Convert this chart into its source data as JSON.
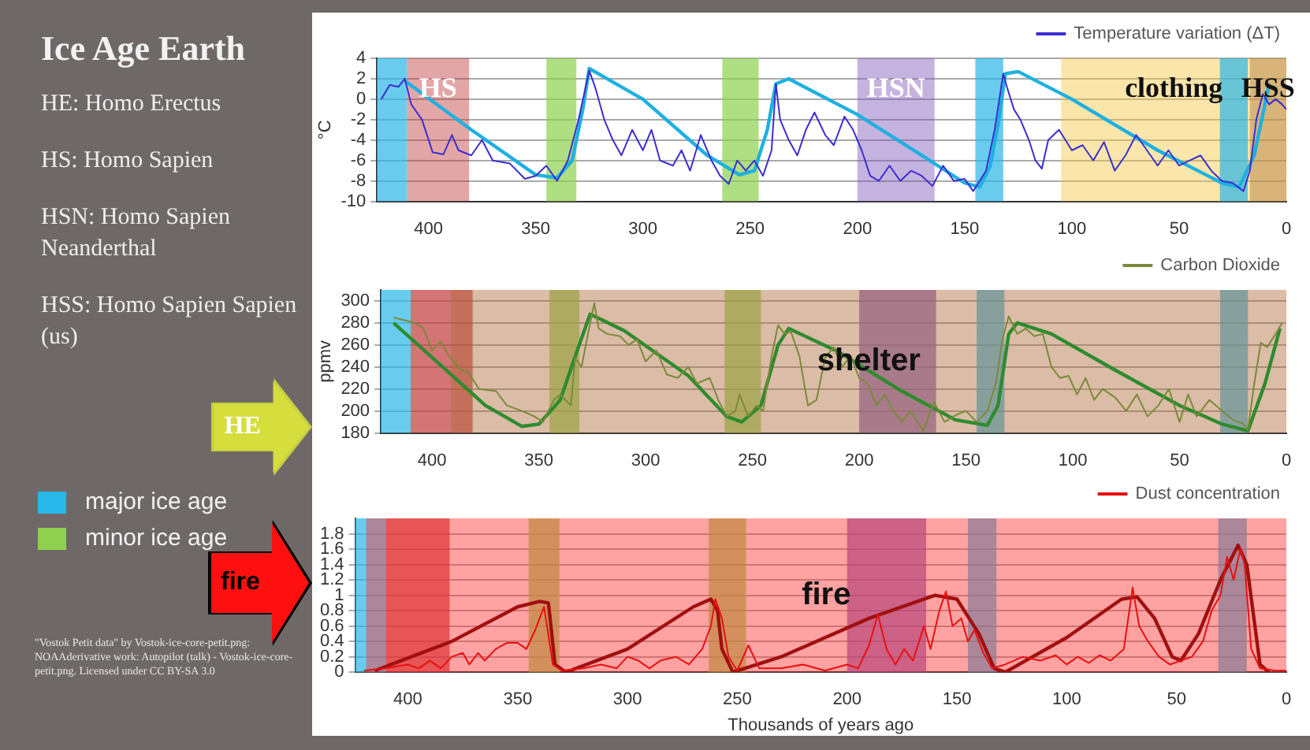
{
  "chart_data": [
    {
      "type": "line",
      "title": "Ice Age Earth",
      "ylabel": "°C",
      "xlim": [
        424,
        0
      ],
      "xticks": [
        400,
        350,
        300,
        250,
        200,
        150,
        100,
        50,
        0
      ],
      "ylim": [
        -10,
        4
      ],
      "yticks": [
        -10,
        -8,
        -6,
        -4,
        -2,
        0,
        2,
        4
      ],
      "grid": "y",
      "legend": "top right",
      "marker": "none",
      "annotations": [
        "HE: Homo Erectus",
        "HS: Homo Sapien",
        "HSN: Homo Sapien Neanderthal",
        "HSS: Homo Sapien Sapien (us)",
        "major ice age",
        "minor ice age",
        "\"Vostok Petit data\" by Vostok-ice-core-petit.png: NOAAderivative work: Autopilot (talk) - Vostok-ice-core-petit.png. Licensed under CC BY-SA 3.0"
      ],
      "bands": [
        {
          "axis": "x",
          "from": 424,
          "to": 410,
          "color": "#29b6e8"
        },
        {
          "axis": "x",
          "from": 410,
          "to": 381,
          "label": "HS",
          "color": "#c0393b"
        },
        {
          "axis": "x",
          "from": 345,
          "to": 331,
          "color": "#8fd14f"
        },
        {
          "axis": "x",
          "from": 263,
          "to": 246,
          "color": "#8fd14f"
        },
        {
          "axis": "x",
          "from": 200,
          "to": 164,
          "label": "HSN",
          "color": "#7e57b8"
        },
        {
          "axis": "x",
          "from": 145,
          "to": 132,
          "color": "#29b6e8"
        },
        {
          "axis": "x",
          "from": 105,
          "to": 0,
          "label": "clothing",
          "color": "#f5c842"
        },
        {
          "axis": "x",
          "from": 31,
          "to": 18,
          "color": "#29b6e8"
        },
        {
          "axis": "x",
          "from": 17,
          "to": 0,
          "label": "HSS",
          "color": "#b07840"
        }
      ],
      "series": [
        {
          "name": "Temperature variation (ΔT)",
          "color": "#3b2fd0",
          "x": [
            422,
            418,
            414,
            411,
            408,
            403,
            398,
            393,
            389,
            386,
            380,
            375,
            370,
            362,
            355,
            350,
            345,
            340,
            335,
            330,
            325,
            322,
            318,
            314,
            310,
            305,
            300,
            296,
            292,
            286,
            282,
            278,
            273,
            268,
            264,
            260,
            256,
            252,
            248,
            244,
            240,
            238,
            236,
            232,
            228,
            224,
            220,
            215,
            211,
            206,
            202,
            198,
            194,
            190,
            185,
            180,
            175,
            170,
            165,
            160,
            155,
            150,
            146,
            140,
            136,
            132,
            130,
            127,
            124,
            120,
            117,
            114,
            111,
            106,
            100,
            95,
            90,
            85,
            80,
            75,
            70,
            65,
            60,
            55,
            50,
            45,
            40,
            35,
            30,
            25,
            20,
            17,
            14,
            11,
            8,
            5,
            2,
            0
          ],
          "values": [
            0,
            1.4,
            1.2,
            2,
            -0.5,
            -2,
            -5.2,
            -5.4,
            -3.5,
            -5,
            -5.5,
            -4,
            -6,
            -6.3,
            -7.8,
            -7.5,
            -6.5,
            -8,
            -6,
            -2,
            2.8,
            1,
            -2,
            -4,
            -5.5,
            -3,
            -5,
            -3,
            -6,
            -6.5,
            -5,
            -7,
            -3.5,
            -6,
            -7.5,
            -8.3,
            -6,
            -7,
            -6,
            -7.5,
            -5,
            1.5,
            -2,
            -4,
            -5.5,
            -3,
            -1.3,
            -3.5,
            -4.5,
            -1.7,
            -3,
            -5,
            -7.5,
            -8,
            -6.5,
            -8,
            -7,
            -7.5,
            -8.5,
            -6.5,
            -8,
            -7.8,
            -9,
            -7,
            -3,
            2.5,
            1,
            -1,
            -2,
            -4,
            -6,
            -6.8,
            -4,
            -3,
            -5,
            -4.5,
            -6,
            -4.2,
            -7,
            -5.5,
            -3.5,
            -5,
            -6.5,
            -5,
            -6.5,
            -6,
            -5.5,
            -7,
            -8,
            -8.2,
            -9,
            -7,
            -2,
            0.5,
            -0.5,
            0,
            -0.5,
            -1
          ]
        },
        {
          "color": "#1fb0e0",
          "x": [
            411,
            380,
            350,
            340,
            333,
            328,
            325,
            300,
            270,
            255,
            248,
            242,
            238,
            232,
            200,
            170,
            150,
            143,
            138,
            134,
            131,
            125,
            100,
            60,
            30,
            22,
            15,
            8
          ],
          "values": [
            1.8,
            -3,
            -7.4,
            -7.7,
            -6,
            -1,
            3,
            0,
            -5.5,
            -7.4,
            -7,
            -3,
            1.5,
            2,
            -1.5,
            -5.5,
            -8.2,
            -8.6,
            -6.5,
            -2,
            2.5,
            2.7,
            0,
            -5,
            -8.2,
            -8.6,
            -5.5,
            1.5
          ]
        }
      ]
    },
    {
      "type": "line",
      "ylabel": "ppmv",
      "xlim": [
        424,
        0
      ],
      "xticks": [
        400,
        350,
        300,
        250,
        200,
        150,
        100,
        50,
        0
      ],
      "ylim": [
        180,
        310
      ],
      "yticks": [
        180,
        200,
        220,
        240,
        260,
        280,
        300
      ],
      "grid": "y",
      "legend": "top right",
      "marker": "none",
      "annotations": [
        "HE"
      ],
      "bands": [
        {
          "axis": "x",
          "from": 424,
          "to": 410,
          "color": "#29b6e8"
        },
        {
          "axis": "x",
          "from": 410,
          "to": 381,
          "color": "#c0393b"
        },
        {
          "axis": "x",
          "from": 345,
          "to": 331,
          "color": "#8fd14f"
        },
        {
          "axis": "x",
          "from": 263,
          "to": 246,
          "color": "#8fd14f"
        },
        {
          "axis": "x",
          "from": 200,
          "to": 164,
          "color": "#7e57b8"
        },
        {
          "axis": "x",
          "from": 145,
          "to": 132,
          "color": "#29b6e8"
        },
        {
          "axis": "x",
          "from": 31,
          "to": 18,
          "color": "#29b6e8"
        },
        {
          "axis": "x",
          "from": 391,
          "to": 0,
          "label": "shelter",
          "color": "#b06a3a"
        }
      ],
      "series": [
        {
          "name": "Carbon Dioxide",
          "color": "#7a8a3a",
          "x": [
            418,
            414,
            408,
            404,
            400,
            396,
            392,
            387,
            383,
            378,
            370,
            365,
            358,
            352,
            348,
            343,
            340,
            335,
            333,
            330,
            327,
            324,
            322,
            318,
            312,
            308,
            304,
            300,
            295,
            290,
            285,
            280,
            276,
            270,
            266,
            262,
            258,
            256,
            252,
            248,
            245,
            241,
            238,
            235,
            232,
            228,
            224,
            220,
            216,
            212,
            208,
            204,
            200,
            196,
            192,
            188,
            184,
            180,
            176,
            170,
            165,
            160,
            155,
            150,
            145,
            140,
            136,
            133,
            130,
            126,
            122,
            118,
            114,
            110,
            106,
            102,
            98,
            94,
            90,
            86,
            80,
            75,
            70,
            65,
            60,
            55,
            50,
            46,
            42,
            36,
            30,
            25,
            20,
            18,
            15,
            12,
            9,
            5,
            2
          ],
          "values": [
            285,
            283,
            280,
            275,
            255,
            263,
            250,
            238,
            235,
            220,
            218,
            205,
            200,
            195,
            190,
            210,
            215,
            205,
            248,
            240,
            270,
            298,
            275,
            270,
            268,
            260,
            265,
            245,
            255,
            233,
            230,
            240,
            225,
            230,
            210,
            195,
            200,
            215,
            195,
            205,
            200,
            250,
            278,
            270,
            272,
            250,
            205,
            210,
            248,
            258,
            240,
            250,
            230,
            225,
            205,
            215,
            200,
            190,
            200,
            182,
            208,
            190,
            196,
            200,
            190,
            200,
            225,
            265,
            286,
            270,
            275,
            268,
            270,
            240,
            230,
            232,
            215,
            230,
            210,
            220,
            212,
            200,
            215,
            195,
            205,
            220,
            190,
            215,
            195,
            210,
            200,
            192,
            188,
            183,
            225,
            262,
            258,
            270,
            280
          ]
        },
        {
          "color": "#2e8b2e",
          "x": [
            418,
            395,
            375,
            358,
            350,
            340,
            332,
            326,
            310,
            280,
            262,
            255,
            246,
            238,
            233,
            210,
            180,
            155,
            140,
            135,
            130,
            126,
            110,
            80,
            50,
            30,
            18,
            10,
            3
          ],
          "values": [
            280,
            240,
            205,
            186,
            188,
            210,
            255,
            288,
            273,
            232,
            195,
            190,
            205,
            260,
            275,
            254,
            218,
            192,
            187,
            205,
            270,
            280,
            270,
            237,
            205,
            188,
            182,
            225,
            275
          ]
        }
      ]
    },
    {
      "type": "line",
      "xlabel": "Thousands of years ago",
      "xlim": [
        424,
        0
      ],
      "xticks": [
        400,
        350,
        300,
        250,
        200,
        150,
        100,
        50,
        0
      ],
      "ylim": [
        0,
        2
      ],
      "yticks": [
        0,
        0.2,
        0.4,
        0.6,
        0.8,
        1,
        1.2,
        1.4,
        1.6,
        1.8
      ],
      "grid": "y",
      "legend": "top right",
      "marker": "none",
      "annotations": [
        "fire"
      ],
      "bands": [
        {
          "axis": "x",
          "from": 424,
          "to": 410,
          "color": "#29b6e8"
        },
        {
          "axis": "x",
          "from": 410,
          "to": 381,
          "color": "#c0393b"
        },
        {
          "axis": "x",
          "from": 345,
          "to": 331,
          "color": "#8fd14f"
        },
        {
          "axis": "x",
          "from": 263,
          "to": 246,
          "color": "#8fd14f"
        },
        {
          "axis": "x",
          "from": 200,
          "to": 164,
          "color": "#7e57b8"
        },
        {
          "axis": "x",
          "from": 145,
          "to": 132,
          "color": "#29b6e8"
        },
        {
          "axis": "x",
          "from": 31,
          "to": 18,
          "color": "#29b6e8"
        },
        {
          "axis": "x",
          "from": 419,
          "to": 0,
          "label": "fire",
          "color": "#ff3030"
        }
      ],
      "series": [
        {
          "name": "Dust concentration",
          "color": "#e81010",
          "x": [
            420,
            410,
            400,
            395,
            390,
            385,
            380,
            375,
            372,
            368,
            365,
            360,
            355,
            350,
            346,
            342,
            338,
            334,
            330,
            320,
            312,
            305,
            300,
            295,
            290,
            285,
            278,
            272,
            266,
            262,
            260,
            257,
            254,
            250,
            245,
            240,
            230,
            220,
            210,
            200,
            195,
            190,
            186,
            182,
            178,
            174,
            170,
            165,
            162,
            158,
            155,
            152,
            148,
            145,
            142,
            138,
            134,
            128,
            120,
            112,
            105,
            100,
            95,
            90,
            85,
            80,
            74,
            70,
            67,
            63,
            58,
            53,
            48,
            43,
            38,
            34,
            30,
            27,
            24,
            21,
            19,
            16,
            12,
            5,
            0
          ],
          "values": [
            0.02,
            0.05,
            0.1,
            0.05,
            0.15,
            0.05,
            0.2,
            0.25,
            0.1,
            0.25,
            0.15,
            0.3,
            0.38,
            0.38,
            0.3,
            0.55,
            0.85,
            0.1,
            0.02,
            0.05,
            0.1,
            0.05,
            0.2,
            0.15,
            0.05,
            0.15,
            0.2,
            0.1,
            0.3,
            0.6,
            0.95,
            0.7,
            0.2,
            0.02,
            0.35,
            0.05,
            0.05,
            0.1,
            0.02,
            0.1,
            0.05,
            0.35,
            0.75,
            0.3,
            0.1,
            0.3,
            0.15,
            0.6,
            0.3,
            0.8,
            1.05,
            0.6,
            0.7,
            0.4,
            0.55,
            0.25,
            0.05,
            0.1,
            0.2,
            0.15,
            0.22,
            0.1,
            0.2,
            0.12,
            0.22,
            0.15,
            0.3,
            1.1,
            0.6,
            0.4,
            0.2,
            0.1,
            0.15,
            0.2,
            0.4,
            0.8,
            1,
            1.5,
            1.2,
            1.6,
            1.4,
            0.3,
            0.05,
            0.02,
            0.02
          ]
        },
        {
          "color": "#a01010",
          "x": [
            415,
            380,
            350,
            340,
            336,
            333,
            328,
            300,
            270,
            262,
            259,
            257,
            252,
            230,
            190,
            160,
            150,
            140,
            133,
            128,
            100,
            75,
            68,
            60,
            52,
            48,
            40,
            30,
            22,
            18,
            12,
            8
          ],
          "values": [
            0.02,
            0.4,
            0.85,
            0.92,
            0.9,
            0.1,
            0,
            0.3,
            0.85,
            0.95,
            0.8,
            0.3,
            0,
            0.2,
            0.7,
            1,
            0.95,
            0.5,
            0.05,
            0,
            0.45,
            0.95,
            0.98,
            0.7,
            0.2,
            0.15,
            0.5,
            1.2,
            1.65,
            1.4,
            0.1,
            0
          ]
        }
      ]
    }
  ]
}
